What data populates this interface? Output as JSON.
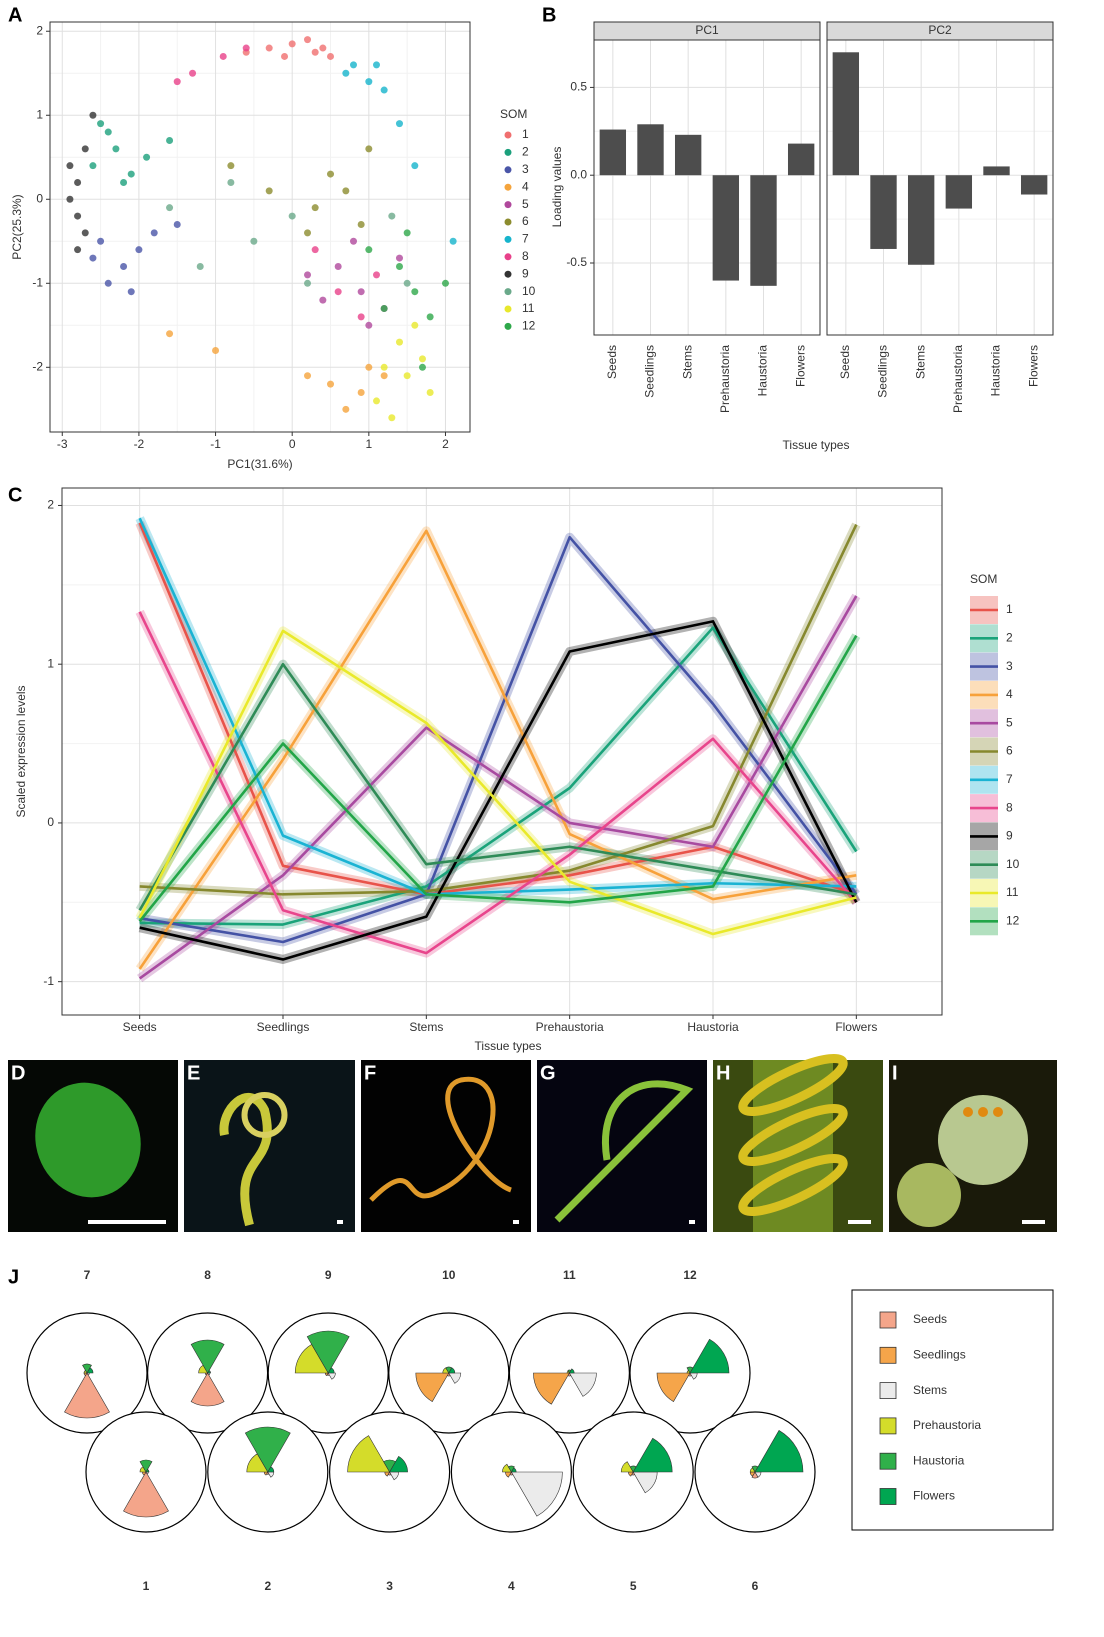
{
  "chart_data": [
    {
      "type": "scatter",
      "panel": "A",
      "xlabel": "PC1(31.6%)",
      "ylabel": "PC2(25.3%)",
      "legend_title": "SOM",
      "xlim": [
        -3.16,
        2.32
      ],
      "ylim": [
        -2.77,
        2.11
      ],
      "xticks": [
        -3,
        -2,
        -1,
        0,
        1,
        2
      ],
      "yticks": [
        -2,
        -1,
        0,
        1,
        2
      ],
      "grid": true,
      "series": [
        {
          "name": "1",
          "color": "#f06f6f",
          "x": [
            -0.3,
            0,
            0.3,
            0.5,
            -0.6,
            0.2,
            -0.1,
            0.4
          ],
          "values": [
            1.8,
            1.85,
            1.75,
            1.7,
            1.75,
            1.9,
            1.7,
            1.8
          ]
        },
        {
          "name": "2",
          "color": "#1ba07c",
          "x": [
            -2.6,
            -2.3,
            -2.1,
            -2.4,
            -1.9,
            -2.2,
            -1.6,
            -2.5
          ],
          "values": [
            0.4,
            0.6,
            0.3,
            0.8,
            0.5,
            0.2,
            0.7,
            0.9
          ]
        },
        {
          "name": "3",
          "color": "#4a55a8",
          "x": [
            -2.5,
            -2.2,
            -2.0,
            -2.4,
            -1.8,
            -2.1,
            -1.5,
            -2.6
          ],
          "values": [
            -0.5,
            -0.8,
            -0.6,
            -1.0,
            -0.4,
            -1.1,
            -0.3,
            -0.7
          ]
        },
        {
          "name": "4",
          "color": "#f5a43c",
          "x": [
            0.2,
            0.5,
            0.9,
            1.2,
            -1.0,
            0.7,
            -1.6,
            1.0
          ],
          "values": [
            -2.1,
            -2.2,
            -2.3,
            -2.1,
            -1.8,
            -2.5,
            -1.6,
            -2.0
          ]
        },
        {
          "name": "5",
          "color": "#b0489c",
          "x": [
            0.6,
            0.9,
            1.2,
            0.4,
            0.8,
            1.0,
            0.2,
            1.4
          ],
          "values": [
            -0.8,
            -1.1,
            -1.3,
            -1.2,
            -0.5,
            -1.5,
            -0.9,
            -0.7
          ]
        },
        {
          "name": "6",
          "color": "#8c8c2e",
          "x": [
            0.3,
            0.7,
            0.5,
            -0.3,
            0.9,
            0.2,
            -0.8,
            1.0
          ],
          "values": [
            -0.1,
            0.1,
            0.3,
            0.1,
            -0.3,
            -0.4,
            0.4,
            0.6
          ]
        },
        {
          "name": "7",
          "color": "#16b4cc",
          "x": [
            0.8,
            1.0,
            1.2,
            0.7,
            1.4,
            1.1,
            1.6,
            2.1
          ],
          "values": [
            1.6,
            1.4,
            1.3,
            1.5,
            0.9,
            1.6,
            0.4,
            -0.5
          ]
        },
        {
          "name": "8",
          "color": "#e8418a",
          "x": [
            -0.9,
            -1.3,
            -0.6,
            0.6,
            0.9,
            0.3,
            1.1,
            -1.5
          ],
          "values": [
            1.7,
            1.5,
            1.8,
            -1.1,
            -1.4,
            -0.6,
            -0.9,
            1.4
          ]
        },
        {
          "name": "9",
          "color": "#333333",
          "x": [
            -2.8,
            -2.9,
            -2.8,
            -2.7,
            -2.9,
            -2.7,
            -2.6,
            -2.8
          ],
          "values": [
            0.2,
            0.0,
            -0.2,
            0.6,
            0.4,
            -0.4,
            1.0,
            -0.6
          ]
        },
        {
          "name": "10",
          "color": "#6aa98a",
          "x": [
            -0.5,
            0.2,
            -1.2,
            1.3,
            -0.8,
            1.5,
            0.0,
            -1.6
          ],
          "values": [
            -0.5,
            -1.0,
            -0.8,
            -0.2,
            0.2,
            -1.0,
            -0.2,
            -0.1
          ]
        },
        {
          "name": "11",
          "color": "#e8e82c",
          "x": [
            1.2,
            1.5,
            1.4,
            1.7,
            1.1,
            1.8,
            1.6,
            1.3
          ],
          "values": [
            -2.0,
            -2.1,
            -1.7,
            -1.9,
            -2.4,
            -2.3,
            -1.5,
            -2.6
          ]
        },
        {
          "name": "12",
          "color": "#2ea84a",
          "x": [
            1.4,
            1.2,
            1.6,
            1.0,
            1.8,
            1.5,
            2.0,
            1.7
          ],
          "values": [
            -0.8,
            -1.3,
            -1.1,
            -0.6,
            -1.4,
            -0.4,
            -1.0,
            -2.0
          ]
        }
      ]
    },
    {
      "type": "bar",
      "panel": "B",
      "xlabel": "Tissue types",
      "ylabel": "Loading values",
      "color": "#4d4d4d",
      "categories": [
        "Seeds",
        "Seedlings",
        "Stems",
        "Prehaustoria",
        "Haustoria",
        "Flowers"
      ],
      "ylim": [
        -0.91,
        0.77
      ],
      "yticks": [
        -0.5,
        {
          "value": 0,
          "label": "0.0"
        },
        0.5
      ],
      "grid": true,
      "facets": [
        {
          "title": "PC1",
          "values": [
            0.26,
            0.29,
            0.23,
            -0.6,
            -0.63,
            0.18
          ]
        },
        {
          "title": "PC2",
          "values": [
            0.7,
            -0.42,
            -0.51,
            -0.19,
            0.05,
            -0.11
          ]
        }
      ]
    },
    {
      "type": "line",
      "panel": "C",
      "xlabel": "Tissue types",
      "ylabel": "Scaled expression levels",
      "legend_title": "SOM",
      "categories": [
        "Seeds",
        "Seedlings",
        "Stems",
        "Prehaustoria",
        "Haustoria",
        "Flowers"
      ],
      "ylim": [
        -1.21,
        2.11
      ],
      "yticks": [
        -1,
        0,
        1,
        2
      ],
      "grid": true,
      "series": [
        {
          "name": "1",
          "color": "#e8534a",
          "values": [
            1.89,
            -0.27,
            -0.45,
            -0.33,
            -0.15,
            -0.45
          ]
        },
        {
          "name": "2",
          "color": "#1aa37a",
          "values": [
            -0.63,
            -0.64,
            -0.4,
            0.22,
            1.23,
            -0.18
          ]
        },
        {
          "name": "3",
          "color": "#4452a5",
          "values": [
            -0.6,
            -0.75,
            -0.45,
            1.8,
            0.75,
            -0.45
          ]
        },
        {
          "name": "4",
          "color": "#f7a13a",
          "values": [
            -0.92,
            0.4,
            1.84,
            -0.07,
            -0.48,
            -0.33
          ]
        },
        {
          "name": "5",
          "color": "#a84aa0",
          "values": [
            -0.98,
            -0.33,
            0.6,
            0.0,
            -0.15,
            1.43
          ]
        },
        {
          "name": "6",
          "color": "#86882e",
          "values": [
            -0.4,
            -0.45,
            -0.43,
            -0.3,
            -0.02,
            1.88
          ]
        },
        {
          "name": "7",
          "color": "#1ab3d3",
          "values": [
            1.92,
            -0.08,
            -0.45,
            -0.42,
            -0.38,
            -0.4
          ]
        },
        {
          "name": "8",
          "color": "#e8458c",
          "values": [
            1.33,
            -0.55,
            -0.82,
            -0.2,
            0.53,
            -0.5
          ]
        },
        {
          "name": "9",
          "color": "#000000",
          "values": [
            -0.66,
            -0.86,
            -0.59,
            1.08,
            1.27,
            -0.5
          ]
        },
        {
          "name": "10",
          "color": "#2e8b57",
          "values": [
            -0.55,
            1.0,
            -0.26,
            -0.15,
            -0.3,
            -0.45
          ]
        },
        {
          "name": "11",
          "color": "#e9e92a",
          "values": [
            -0.6,
            1.21,
            0.63,
            -0.37,
            -0.7,
            -0.47
          ]
        },
        {
          "name": "12",
          "color": "#22a548",
          "values": [
            -0.62,
            0.5,
            -0.45,
            -0.5,
            -0.4,
            1.18
          ]
        }
      ]
    },
    {
      "type": "rose",
      "panel": "J",
      "categories": [
        "Seeds",
        "Seedlings",
        "Stems",
        "Prehaustoria",
        "Haustoria",
        "Flowers"
      ],
      "colors": [
        "#f4a58a",
        "#f5a54a",
        "#ebebeb",
        "#d4dc2a",
        "#30b04a",
        "#00a651"
      ],
      "groups": [
        {
          "name": "7",
          "values": [
            0.75,
            0.05,
            0.04,
            0.05,
            0.15,
            0.1
          ]
        },
        {
          "name": "8",
          "values": [
            0.55,
            0.04,
            0.04,
            0.15,
            0.55,
            0.05
          ]
        },
        {
          "name": "9",
          "values": [
            0.04,
            0.05,
            0.12,
            0.55,
            0.7,
            0.1
          ]
        },
        {
          "name": "10",
          "values": [
            0.05,
            0.55,
            0.2,
            0.1,
            0.1,
            0.1
          ]
        },
        {
          "name": "11",
          "values": [
            0.05,
            0.6,
            0.45,
            0.04,
            0.05,
            0.08
          ]
        },
        {
          "name": "12",
          "values": [
            0.05,
            0.55,
            0.12,
            0.05,
            0.1,
            0.65
          ]
        },
        {
          "name": "1",
          "values": [
            0.75,
            0.06,
            0.04,
            0.1,
            0.2,
            0.05
          ]
        },
        {
          "name": "2",
          "values": [
            0.04,
            0.06,
            0.1,
            0.35,
            0.75,
            0.1
          ]
        },
        {
          "name": "3",
          "values": [
            0.05,
            0.08,
            0.15,
            0.7,
            0.2,
            0.3
          ]
        },
        {
          "name": "4",
          "values": [
            0.05,
            0.1,
            0.85,
            0.15,
            0.1,
            0.08
          ]
        },
        {
          "name": "5",
          "values": [
            0.05,
            0.08,
            0.4,
            0.2,
            0.1,
            0.65
          ]
        },
        {
          "name": "6",
          "values": [
            0.1,
            0.08,
            0.1,
            0.08,
            0.1,
            0.8
          ]
        }
      ]
    }
  ],
  "images": [
    {
      "label": "D"
    },
    {
      "label": "E"
    },
    {
      "label": "F"
    },
    {
      "label": "G"
    },
    {
      "label": "H"
    },
    {
      "label": "I"
    }
  ]
}
